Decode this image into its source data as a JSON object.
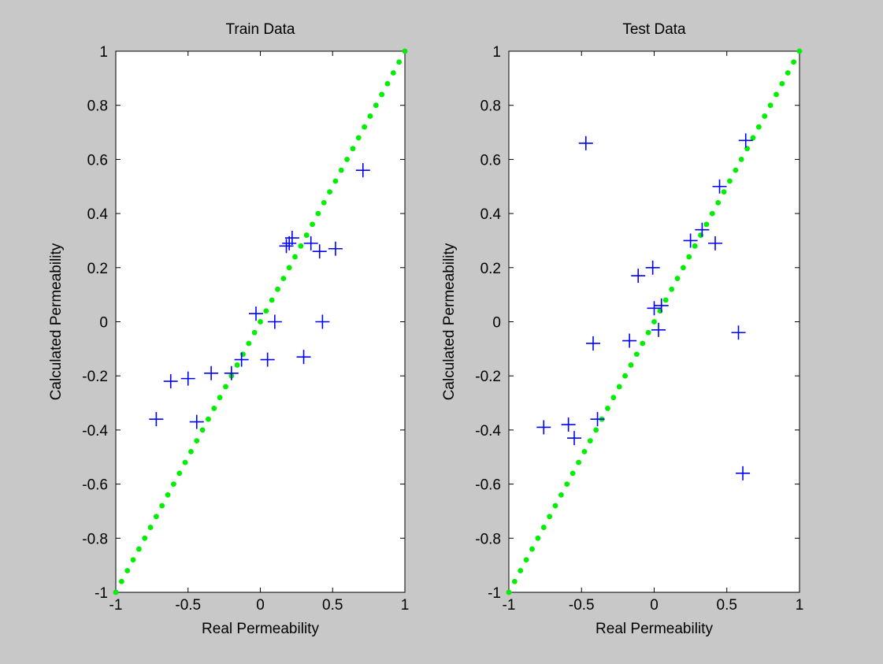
{
  "colors": {
    "background": "#c8c8c8",
    "axes_bg": "#ffffff",
    "marker": "#0000ff",
    "reference_line": "#00ee00"
  },
  "chart_data": [
    {
      "type": "scatter",
      "title": "Train Data",
      "xlabel": "Real Permeability",
      "ylabel": "Calculated Permeability",
      "xlim": [
        -1,
        1
      ],
      "ylim": [
        -1,
        1
      ],
      "xticks": [
        "-1",
        "-0.5",
        "0",
        "0.5",
        "1"
      ],
      "yticks": [
        "-1",
        "-0.8",
        "-0.6",
        "-0.4",
        "-0.2",
        "0",
        "0.2",
        "0.4",
        "0.6",
        "0.8",
        "1"
      ],
      "grid": false,
      "series": [
        {
          "marker": "+",
          "color": "#0000ff",
          "points": [
            [
              -0.72,
              -0.36
            ],
            [
              -0.62,
              -0.22
            ],
            [
              -0.5,
              -0.21
            ],
            [
              -0.44,
              -0.37
            ],
            [
              -0.34,
              -0.19
            ],
            [
              -0.2,
              -0.19
            ],
            [
              -0.13,
              -0.14
            ],
            [
              -0.03,
              0.03
            ],
            [
              0.05,
              -0.14
            ],
            [
              0.1,
              0.0
            ],
            [
              0.18,
              0.28
            ],
            [
              0.2,
              0.29
            ],
            [
              0.22,
              0.31
            ],
            [
              0.3,
              -0.13
            ],
            [
              0.35,
              0.29
            ],
            [
              0.41,
              0.26
            ],
            [
              0.43,
              0.0
            ],
            [
              0.52,
              0.27
            ],
            [
              0.71,
              0.56
            ]
          ]
        },
        {
          "marker": "dotted-line",
          "color": "#00ee00",
          "x": [
            -1,
            1
          ],
          "y": [
            -1,
            1
          ]
        }
      ]
    },
    {
      "type": "scatter",
      "title": "Test Data",
      "xlabel": "Real Permeability",
      "ylabel": "Calculated Permeability",
      "xlim": [
        -1,
        1
      ],
      "ylim": [
        -1,
        1
      ],
      "xticks": [
        "-1",
        "-0.5",
        "0",
        "0.5",
        "1"
      ],
      "yticks": [
        "-1",
        "-0.8",
        "-0.6",
        "-0.4",
        "-0.2",
        "0",
        "0.2",
        "0.4",
        "0.6",
        "0.8",
        "1"
      ],
      "grid": false,
      "series": [
        {
          "marker": "+",
          "color": "#0000ff",
          "points": [
            [
              -0.76,
              -0.39
            ],
            [
              -0.59,
              -0.38
            ],
            [
              -0.55,
              -0.43
            ],
            [
              -0.47,
              0.66
            ],
            [
              -0.42,
              -0.08
            ],
            [
              -0.39,
              -0.36
            ],
            [
              -0.17,
              -0.07
            ],
            [
              -0.11,
              0.17
            ],
            [
              -0.01,
              0.2
            ],
            [
              0.0,
              0.05
            ],
            [
              0.03,
              -0.03
            ],
            [
              0.05,
              0.06
            ],
            [
              0.25,
              0.3
            ],
            [
              0.33,
              0.34
            ],
            [
              0.42,
              0.29
            ],
            [
              0.45,
              0.5
            ],
            [
              0.58,
              -0.04
            ],
            [
              0.61,
              -0.56
            ],
            [
              0.63,
              0.67
            ]
          ]
        },
        {
          "marker": "dotted-line",
          "color": "#00ee00",
          "x": [
            -1,
            1
          ],
          "y": [
            -1,
            1
          ]
        }
      ]
    }
  ]
}
